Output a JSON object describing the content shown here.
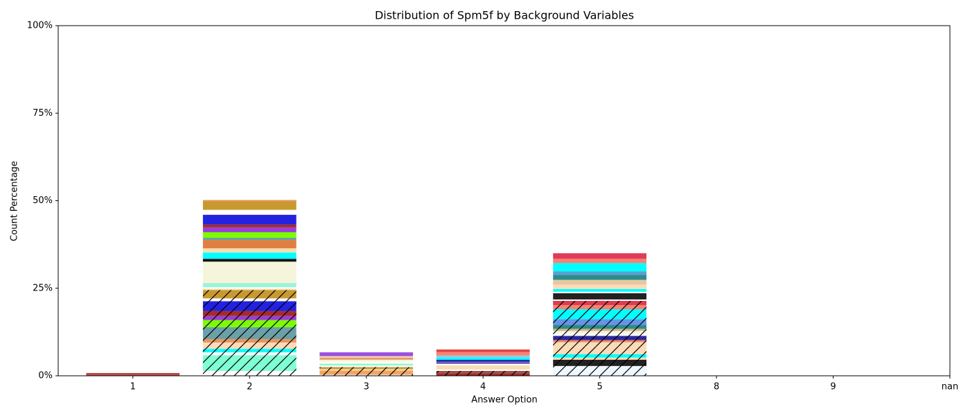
{
  "chart_data": {
    "type": "stacked-bar",
    "title": "Distribution of Spm5f by Background Variables",
    "xlabel": "Answer Option",
    "ylabel": "Count Percentage",
    "categories": [
      "1",
      "2",
      "3",
      "4",
      "5",
      "8",
      "9",
      "nan"
    ],
    "ylim": [
      0,
      100
    ],
    "yticks": [
      {
        "value": 0,
        "label": "0%"
      },
      {
        "value": 25,
        "label": "25%"
      },
      {
        "value": 50,
        "label": "50%"
      },
      {
        "value": 75,
        "label": "75%"
      },
      {
        "value": 100,
        "label": "100%"
      }
    ],
    "segments": [
      [
        {
          "value": 0.8,
          "color": "#b94a48",
          "hatch": false
        }
      ],
      [
        {
          "value": 1.4,
          "color": "#ffffff",
          "hatch": true
        },
        {
          "value": 4.5,
          "color": "#7fffd4",
          "hatch": true
        },
        {
          "value": 0.8,
          "color": "#ffffff",
          "hatch": true
        },
        {
          "value": 1.0,
          "color": "#00ffff",
          "hatch": true
        },
        {
          "value": 1.8,
          "color": "#ffdab9",
          "hatch": true
        },
        {
          "value": 1.0,
          "color": "#e9965a",
          "hatch": true
        },
        {
          "value": 3.4,
          "color": "#6aa0a8",
          "hatch": true
        },
        {
          "value": 2.0,
          "color": "#7cfc00",
          "hatch": true
        },
        {
          "value": 1.2,
          "color": "#9b3fd1",
          "hatch": true
        },
        {
          "value": 1.4,
          "color": "#a52a2a",
          "hatch": true
        },
        {
          "value": 2.8,
          "color": "#2222e0",
          "hatch": true
        },
        {
          "value": 0.8,
          "color": "#ffffff",
          "hatch": true
        },
        {
          "value": 2.4,
          "color": "#c8992f",
          "hatch": true
        },
        {
          "value": 0.4,
          "color": "#f5deb3",
          "hatch": false
        },
        {
          "value": 0.4,
          "color": "#ffffff",
          "hatch": false
        },
        {
          "value": 1.2,
          "color": "#98f5d8",
          "hatch": false
        },
        {
          "value": 6.1,
          "color": "#f5f5dc",
          "hatch": false
        },
        {
          "value": 0.8,
          "color": "#111111",
          "hatch": false
        },
        {
          "value": 1.8,
          "color": "#00ffff",
          "hatch": false
        },
        {
          "value": 1.2,
          "color": "#f5deb3",
          "hatch": false
        },
        {
          "value": 2.4,
          "color": "#e08040",
          "hatch": false
        },
        {
          "value": 0.6,
          "color": "#6aa0a8",
          "hatch": false
        },
        {
          "value": 1.6,
          "color": "#7cfc00",
          "hatch": false
        },
        {
          "value": 1.4,
          "color": "#9b3fd1",
          "hatch": false
        },
        {
          "value": 0.8,
          "color": "#a52a2a",
          "hatch": false
        },
        {
          "value": 2.8,
          "color": "#2222e0",
          "hatch": false
        },
        {
          "value": 1.4,
          "color": "#ffffff",
          "hatch": false
        },
        {
          "value": 2.4,
          "color": "#c8992f",
          "hatch": false
        },
        {
          "value": 0.4,
          "color": "#e9965a",
          "hatch": false
        }
      ],
      [
        {
          "value": 0.3,
          "color": "#ffffff",
          "hatch": true
        },
        {
          "value": 1.2,
          "color": "#f4a460",
          "hatch": true
        },
        {
          "value": 0.4,
          "color": "#f5deb3",
          "hatch": true
        },
        {
          "value": 0.6,
          "color": "#c8992f",
          "hatch": true
        },
        {
          "value": 0.4,
          "color": "#ffffff",
          "hatch": false
        },
        {
          "value": 0.6,
          "color": "#98f5d8",
          "hatch": false
        },
        {
          "value": 0.5,
          "color": "#ffffff",
          "hatch": false
        },
        {
          "value": 0.6,
          "color": "#f5f5dc",
          "hatch": false
        },
        {
          "value": 0.6,
          "color": "#e9965a",
          "hatch": false
        },
        {
          "value": 0.4,
          "color": "#f5deb3",
          "hatch": false
        },
        {
          "value": 1.1,
          "color": "#9b4fe0",
          "hatch": false
        }
      ],
      [
        {
          "value": 0.6,
          "color": "#a52a2a",
          "hatch": true
        },
        {
          "value": 0.8,
          "color": "#a0504b",
          "hatch": true
        },
        {
          "value": 0.4,
          "color": "#ffffff",
          "hatch": false
        },
        {
          "value": 1.2,
          "color": "#f5deb3",
          "hatch": false
        },
        {
          "value": 0.4,
          "color": "#ffffff",
          "hatch": false
        },
        {
          "value": 0.6,
          "color": "#6a5acd",
          "hatch": false
        },
        {
          "value": 0.6,
          "color": "#2a2a9a",
          "hatch": false
        },
        {
          "value": 0.6,
          "color": "#00ffff",
          "hatch": false
        },
        {
          "value": 0.6,
          "color": "#87ceeb",
          "hatch": false
        },
        {
          "value": 1.0,
          "color": "#fa8072",
          "hatch": false
        },
        {
          "value": 0.7,
          "color": "#e04040",
          "hatch": false
        }
      ],
      [
        {
          "value": 2.8,
          "color": "#f0f8ff",
          "hatch": true
        },
        {
          "value": 1.8,
          "color": "#222222",
          "hatch": true
        },
        {
          "value": 0.6,
          "color": "#f5deb3",
          "hatch": true
        },
        {
          "value": 1.0,
          "color": "#00ffff",
          "hatch": true
        },
        {
          "value": 2.2,
          "color": "#ffdab9",
          "hatch": true
        },
        {
          "value": 1.2,
          "color": "#f5deb3",
          "hatch": true
        },
        {
          "value": 0.6,
          "color": "#fa8072",
          "hatch": true
        },
        {
          "value": 1.2,
          "color": "#2a2a9a",
          "hatch": true
        },
        {
          "value": 0.6,
          "color": "#ffffff",
          "hatch": true
        },
        {
          "value": 0.8,
          "color": "#f5f5dc",
          "hatch": true
        },
        {
          "value": 0.6,
          "color": "#d2b48c",
          "hatch": true
        },
        {
          "value": 1.2,
          "color": "#2e8b8b",
          "hatch": true
        },
        {
          "value": 1.6,
          "color": "#6495ed",
          "hatch": true
        },
        {
          "value": 2.8,
          "color": "#00ffff",
          "hatch": true
        },
        {
          "value": 1.2,
          "color": "#fa8072",
          "hatch": true
        },
        {
          "value": 1.2,
          "color": "#dc3c50",
          "hatch": true
        },
        {
          "value": 0.4,
          "color": "#ffffff",
          "hatch": false
        },
        {
          "value": 1.8,
          "color": "#222222",
          "hatch": false
        },
        {
          "value": 0.4,
          "color": "#ffffff",
          "hatch": false
        },
        {
          "value": 0.8,
          "color": "#00ffff",
          "hatch": false
        },
        {
          "value": 1.2,
          "color": "#ffdab9",
          "hatch": false
        },
        {
          "value": 1.4,
          "color": "#e6c8a0",
          "hatch": false
        },
        {
          "value": 1.4,
          "color": "#2e8b8b",
          "hatch": false
        },
        {
          "value": 1.0,
          "color": "#5aa0d0",
          "hatch": false
        },
        {
          "value": 2.4,
          "color": "#00ffff",
          "hatch": false
        },
        {
          "value": 1.2,
          "color": "#fa8072",
          "hatch": false
        },
        {
          "value": 1.6,
          "color": "#e03c58",
          "hatch": false
        }
      ],
      [],
      [],
      []
    ]
  }
}
